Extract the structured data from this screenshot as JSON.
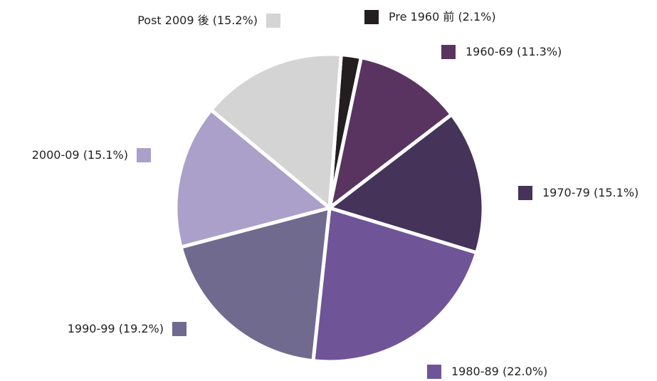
{
  "chart_data": {
    "type": "pie",
    "categories": [
      "Pre 1960 前",
      "1960-69",
      "1970-79",
      "1980-89",
      "1990-99",
      "2000-09",
      "Post 2009 後"
    ],
    "values": [
      2.1,
      11.3,
      15.1,
      22.0,
      19.2,
      15.1,
      15.2
    ],
    "value_labels": [
      "(2.1%)",
      "(11.3%)",
      "(15.1%)",
      "(22.0%)",
      "(19.2%)",
      "(15.1%)",
      "(15.2%)"
    ],
    "colors": [
      "#231f20",
      "#5a3460",
      "#45335a",
      "#6f5597",
      "#6f6a8e",
      "#aba0c9",
      "#d4d4d4"
    ]
  }
}
